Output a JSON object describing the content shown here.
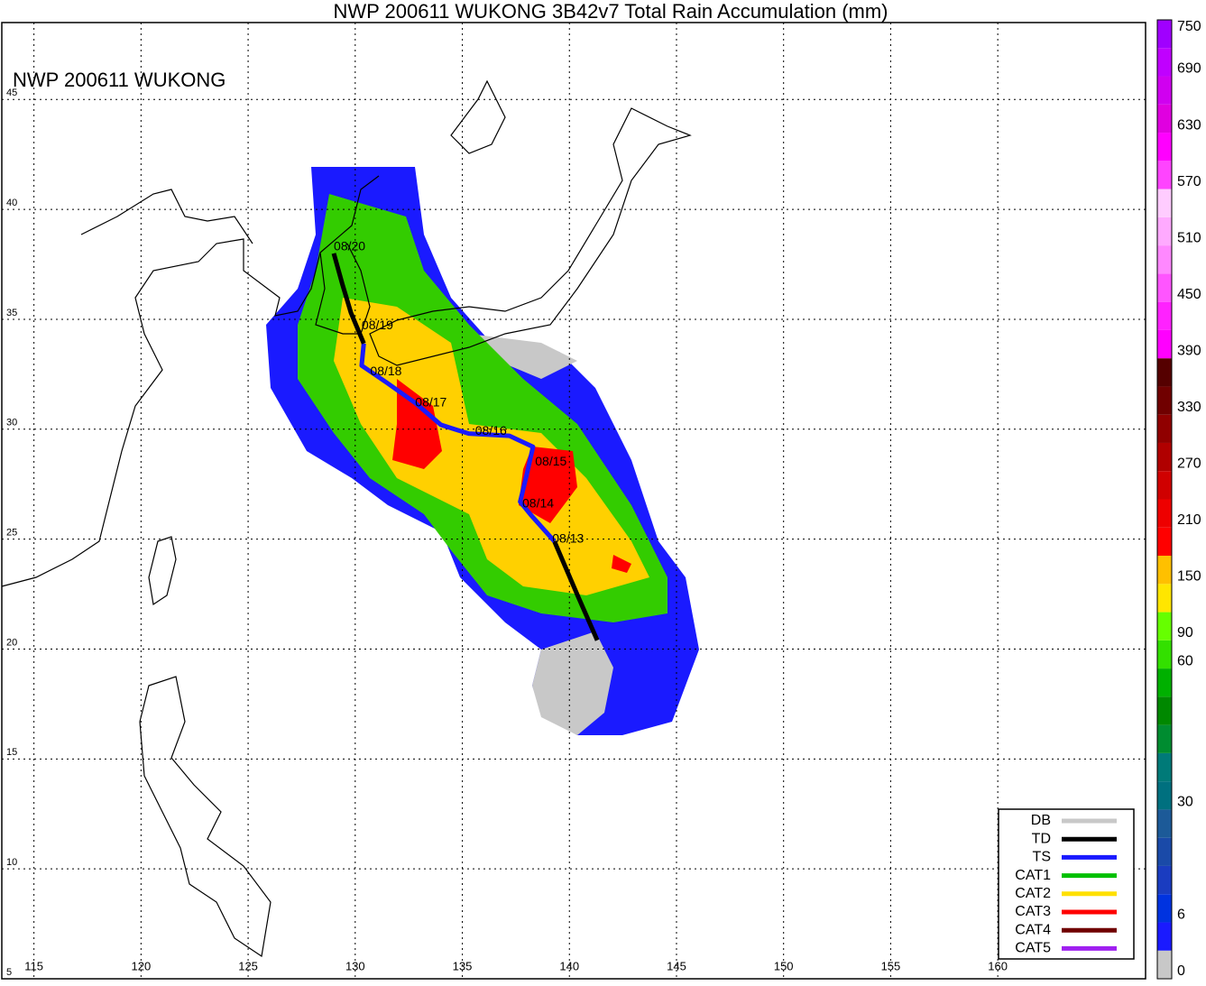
{
  "map": {
    "title": "NWP 200611 WUKONG 3B42v7 Total Rain Accumulation (mm)",
    "label": "NWP 200611 WUKONG",
    "lon_ticks": [
      115,
      120,
      125,
      130,
      135,
      140,
      145,
      150,
      155,
      160
    ],
    "lat_ticks": [
      45,
      40,
      35,
      30,
      25,
      20,
      15,
      10,
      5
    ],
    "xlim": [
      113.5,
      166.9
    ],
    "ylim": [
      48.5,
      5
    ],
    "track": [
      {
        "category": "TD",
        "points": [
          [
            141.3,
            20.4
          ],
          [
            140.4,
            22.4
          ],
          [
            139.3,
            24.9
          ]
        ]
      },
      {
        "category": "TS",
        "points": [
          [
            139.3,
            24.9
          ],
          [
            138.2,
            26.1
          ],
          [
            137.7,
            26.7
          ],
          [
            138.0,
            27.9
          ],
          [
            138.3,
            29.2
          ],
          [
            137.2,
            29.7
          ],
          [
            135.3,
            29.8
          ],
          [
            134.0,
            30.2
          ],
          [
            132.8,
            31.2
          ],
          [
            131.5,
            32.1
          ],
          [
            130.3,
            32.9
          ],
          [
            130.4,
            33.9
          ]
        ]
      },
      {
        "category": "TD",
        "points": [
          [
            130.4,
            33.9
          ],
          [
            129.8,
            35.3
          ],
          [
            129.4,
            36.6
          ],
          [
            129.0,
            38.0
          ]
        ]
      }
    ],
    "dates": [
      {
        "text": "08/20",
        "lon": 129.0,
        "lat": 38.3
      },
      {
        "text": "08/19",
        "lon": 130.3,
        "lat": 34.7
      },
      {
        "text": "08/18",
        "lon": 130.7,
        "lat": 32.6
      },
      {
        "text": "08/17",
        "lon": 132.8,
        "lat": 31.2
      },
      {
        "text": "08/16",
        "lon": 135.6,
        "lat": 29.9
      },
      {
        "text": "08/15",
        "lon": 138.4,
        "lat": 28.5
      },
      {
        "text": "08/14",
        "lon": 137.8,
        "lat": 26.6
      },
      {
        "text": "08/13",
        "lon": 139.2,
        "lat": 25.0
      }
    ],
    "legend": [
      {
        "name": "DB",
        "color": "#c8c8c8"
      },
      {
        "name": "TD",
        "color": "#000000"
      },
      {
        "name": "TS",
        "color": "#1a1aff"
      },
      {
        "name": "CAT1",
        "color": "#00c000"
      },
      {
        "name": "CAT2",
        "color": "#ffe000"
      },
      {
        "name": "CAT3",
        "color": "#ff0000"
      },
      {
        "name": "CAT4",
        "color": "#700000"
      },
      {
        "name": "CAT5",
        "color": "#a020f0"
      }
    ],
    "colorbar": {
      "levels": [
        0,
        3,
        6,
        12,
        18,
        24,
        30,
        36,
        42,
        48,
        54,
        60,
        90,
        120,
        150,
        180,
        210,
        240,
        270,
        300,
        330,
        360,
        390,
        420,
        450,
        480,
        510,
        540,
        570,
        600,
        630,
        660,
        690,
        720,
        750
      ],
      "colors": [
        "#c8c8c8",
        "#1a1aff",
        "#0033e0",
        "#1a3cc0",
        "#1a4aa8",
        "#1c5a98",
        "#00707f",
        "#007a78",
        "#008c30",
        "#008800",
        "#00b000",
        "#33e000",
        "#66ff00",
        "#ffe600",
        "#ffc000",
        "#ff0000",
        "#ee0000",
        "#d00000",
        "#b00000",
        "#900000",
        "#700000",
        "#550000",
        "#ff00ff",
        "#ff22ff",
        "#ff55ff",
        "#ff88ff",
        "#ffaaff",
        "#ffccff",
        "#ff44ff",
        "#ff00ff",
        "#e000e0",
        "#d000f0",
        "#c000ff",
        "#a000ff"
      ],
      "ticks": [
        0,
        6,
        30,
        60,
        90,
        150,
        210,
        270,
        330,
        390,
        450,
        510,
        570,
        630,
        690,
        750
      ]
    }
  }
}
